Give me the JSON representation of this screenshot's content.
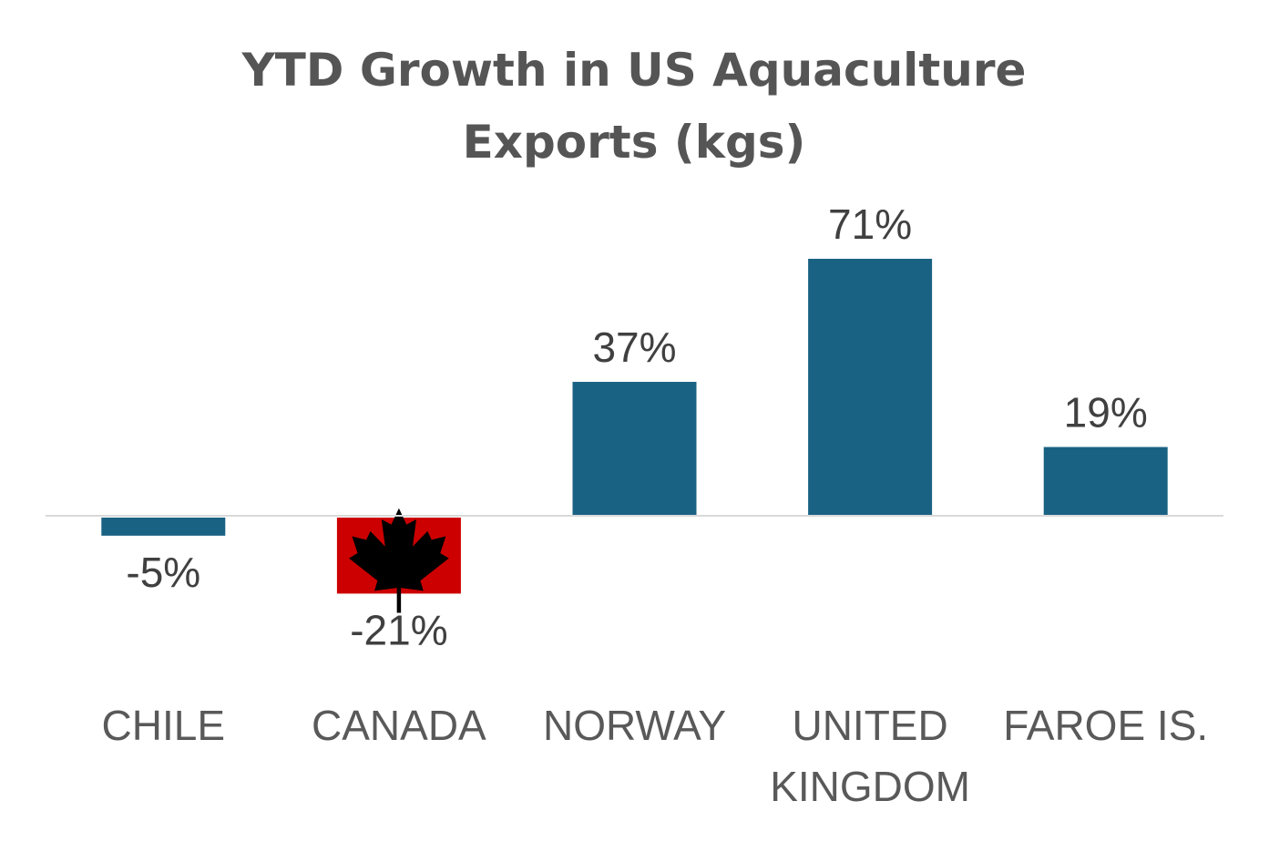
{
  "chart_data": {
    "type": "bar",
    "title_lines": [
      "YTD Growth in US Aquaculture",
      "Exports (kgs)"
    ],
    "categories": [
      [
        "CHILE"
      ],
      [
        "CANADA"
      ],
      [
        "NORWAY"
      ],
      [
        "UNITED",
        "KINGDOM"
      ],
      [
        "FAROE IS."
      ]
    ],
    "values": [
      -5,
      -21,
      37,
      71,
      19
    ],
    "data_labels": [
      "-5%",
      "-21%",
      "37%",
      "71%",
      "19%"
    ],
    "unit": "%",
    "ylim": [
      -21,
      71
    ],
    "grid": false,
    "legend": "none",
    "highlight": {
      "category_index": 1,
      "style": "canada-flag"
    },
    "colors": {
      "bar": "#1a6283",
      "flag_red": "#cc0000",
      "maple_leaf": "#000000",
      "baseline": "#d9d9d9",
      "title": "#555555",
      "label": "#404040",
      "axis_text": "#595959"
    }
  }
}
